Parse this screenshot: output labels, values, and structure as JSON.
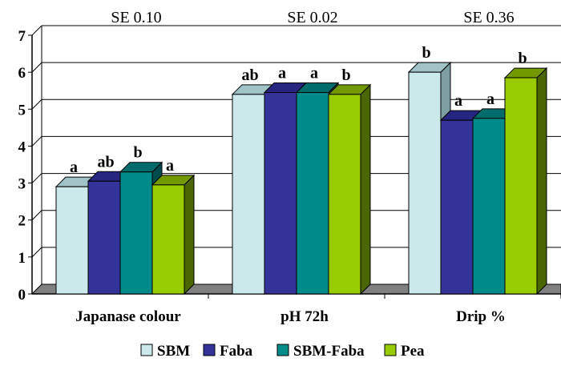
{
  "chart_data": {
    "type": "bar",
    "categories": [
      "Japanase colour",
      "pH 72h",
      "Drip %"
    ],
    "series": [
      {
        "name": "SBM",
        "values": [
          2.9,
          5.4,
          6.0
        ]
      },
      {
        "name": "Faba",
        "values": [
          3.05,
          5.45,
          4.7
        ]
      },
      {
        "name": "SBM-Faba",
        "values": [
          3.3,
          5.45,
          4.75
        ]
      },
      {
        "name": "Pea",
        "values": [
          2.95,
          5.4,
          5.85
        ]
      }
    ],
    "significance": [
      [
        "a",
        "ab",
        "b",
        "a"
      ],
      [
        "ab",
        "a",
        "a",
        "b"
      ],
      [
        "b",
        "a",
        "a",
        "b"
      ]
    ],
    "se_labels": [
      "SE 0.10",
      "SE 0.02",
      "SE 0.36"
    ],
    "ylim": [
      0,
      7
    ],
    "yticks": [
      "0",
      "1",
      "2",
      "3",
      "4",
      "5",
      "6",
      "7"
    ],
    "grid": true,
    "legend_position": "bottom",
    "colors": {
      "SBM": {
        "front": "#cbe8ea",
        "side": "#7d9fa3",
        "top": "#9fc3c6"
      },
      "Faba": {
        "front": "#333399",
        "side": "#1a1a55",
        "top": "#262680"
      },
      "SBM-Faba": {
        "front": "#008b8b",
        "side": "#004b4b",
        "top": "#006b6b"
      },
      "Pea": {
        "front": "#99cc00",
        "side": "#4a6600",
        "top": "#739900"
      },
      "floor": "#808080"
    }
  }
}
